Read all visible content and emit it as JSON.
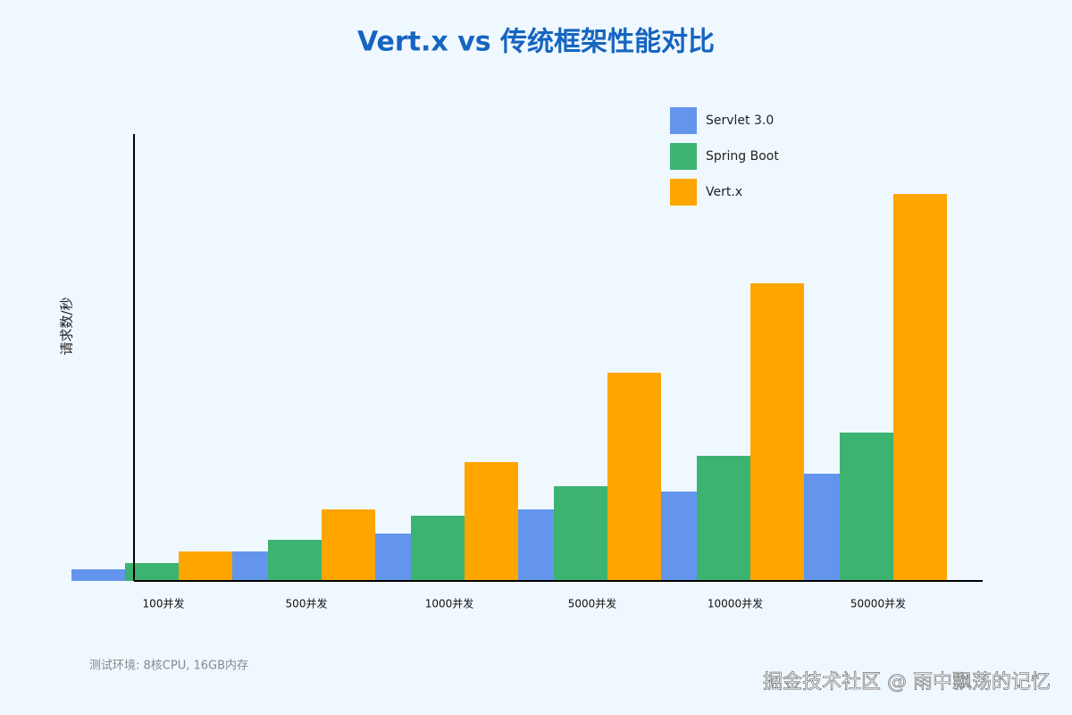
{
  "chart_data": {
    "type": "bar",
    "title": "Vert.x vs 传统框架性能对比",
    "y_label": "请求数/秒",
    "categories": [
      "100并发",
      "500并发",
      "1000并发",
      "5000并发",
      "10000并发",
      "50000并发"
    ],
    "series": [
      {
        "name": "Servlet 3.0",
        "color": "#6495ed",
        "values": [
          13,
          33,
          53,
          80,
          100,
          120
        ]
      },
      {
        "name": "Spring Boot",
        "color": "#3cb371",
        "values": [
          20,
          46,
          73,
          106,
          140,
          166
        ]
      },
      {
        "name": "Vert.x",
        "color": "#ffa500",
        "values": [
          33,
          80,
          133,
          233,
          333,
          433
        ]
      }
    ],
    "ylim": [
      0,
      500
    ],
    "note": "测试环境: 8核CPU, 16GB内存",
    "watermark": "掘金技术社区 @ 雨中飘荡的记忆"
  }
}
